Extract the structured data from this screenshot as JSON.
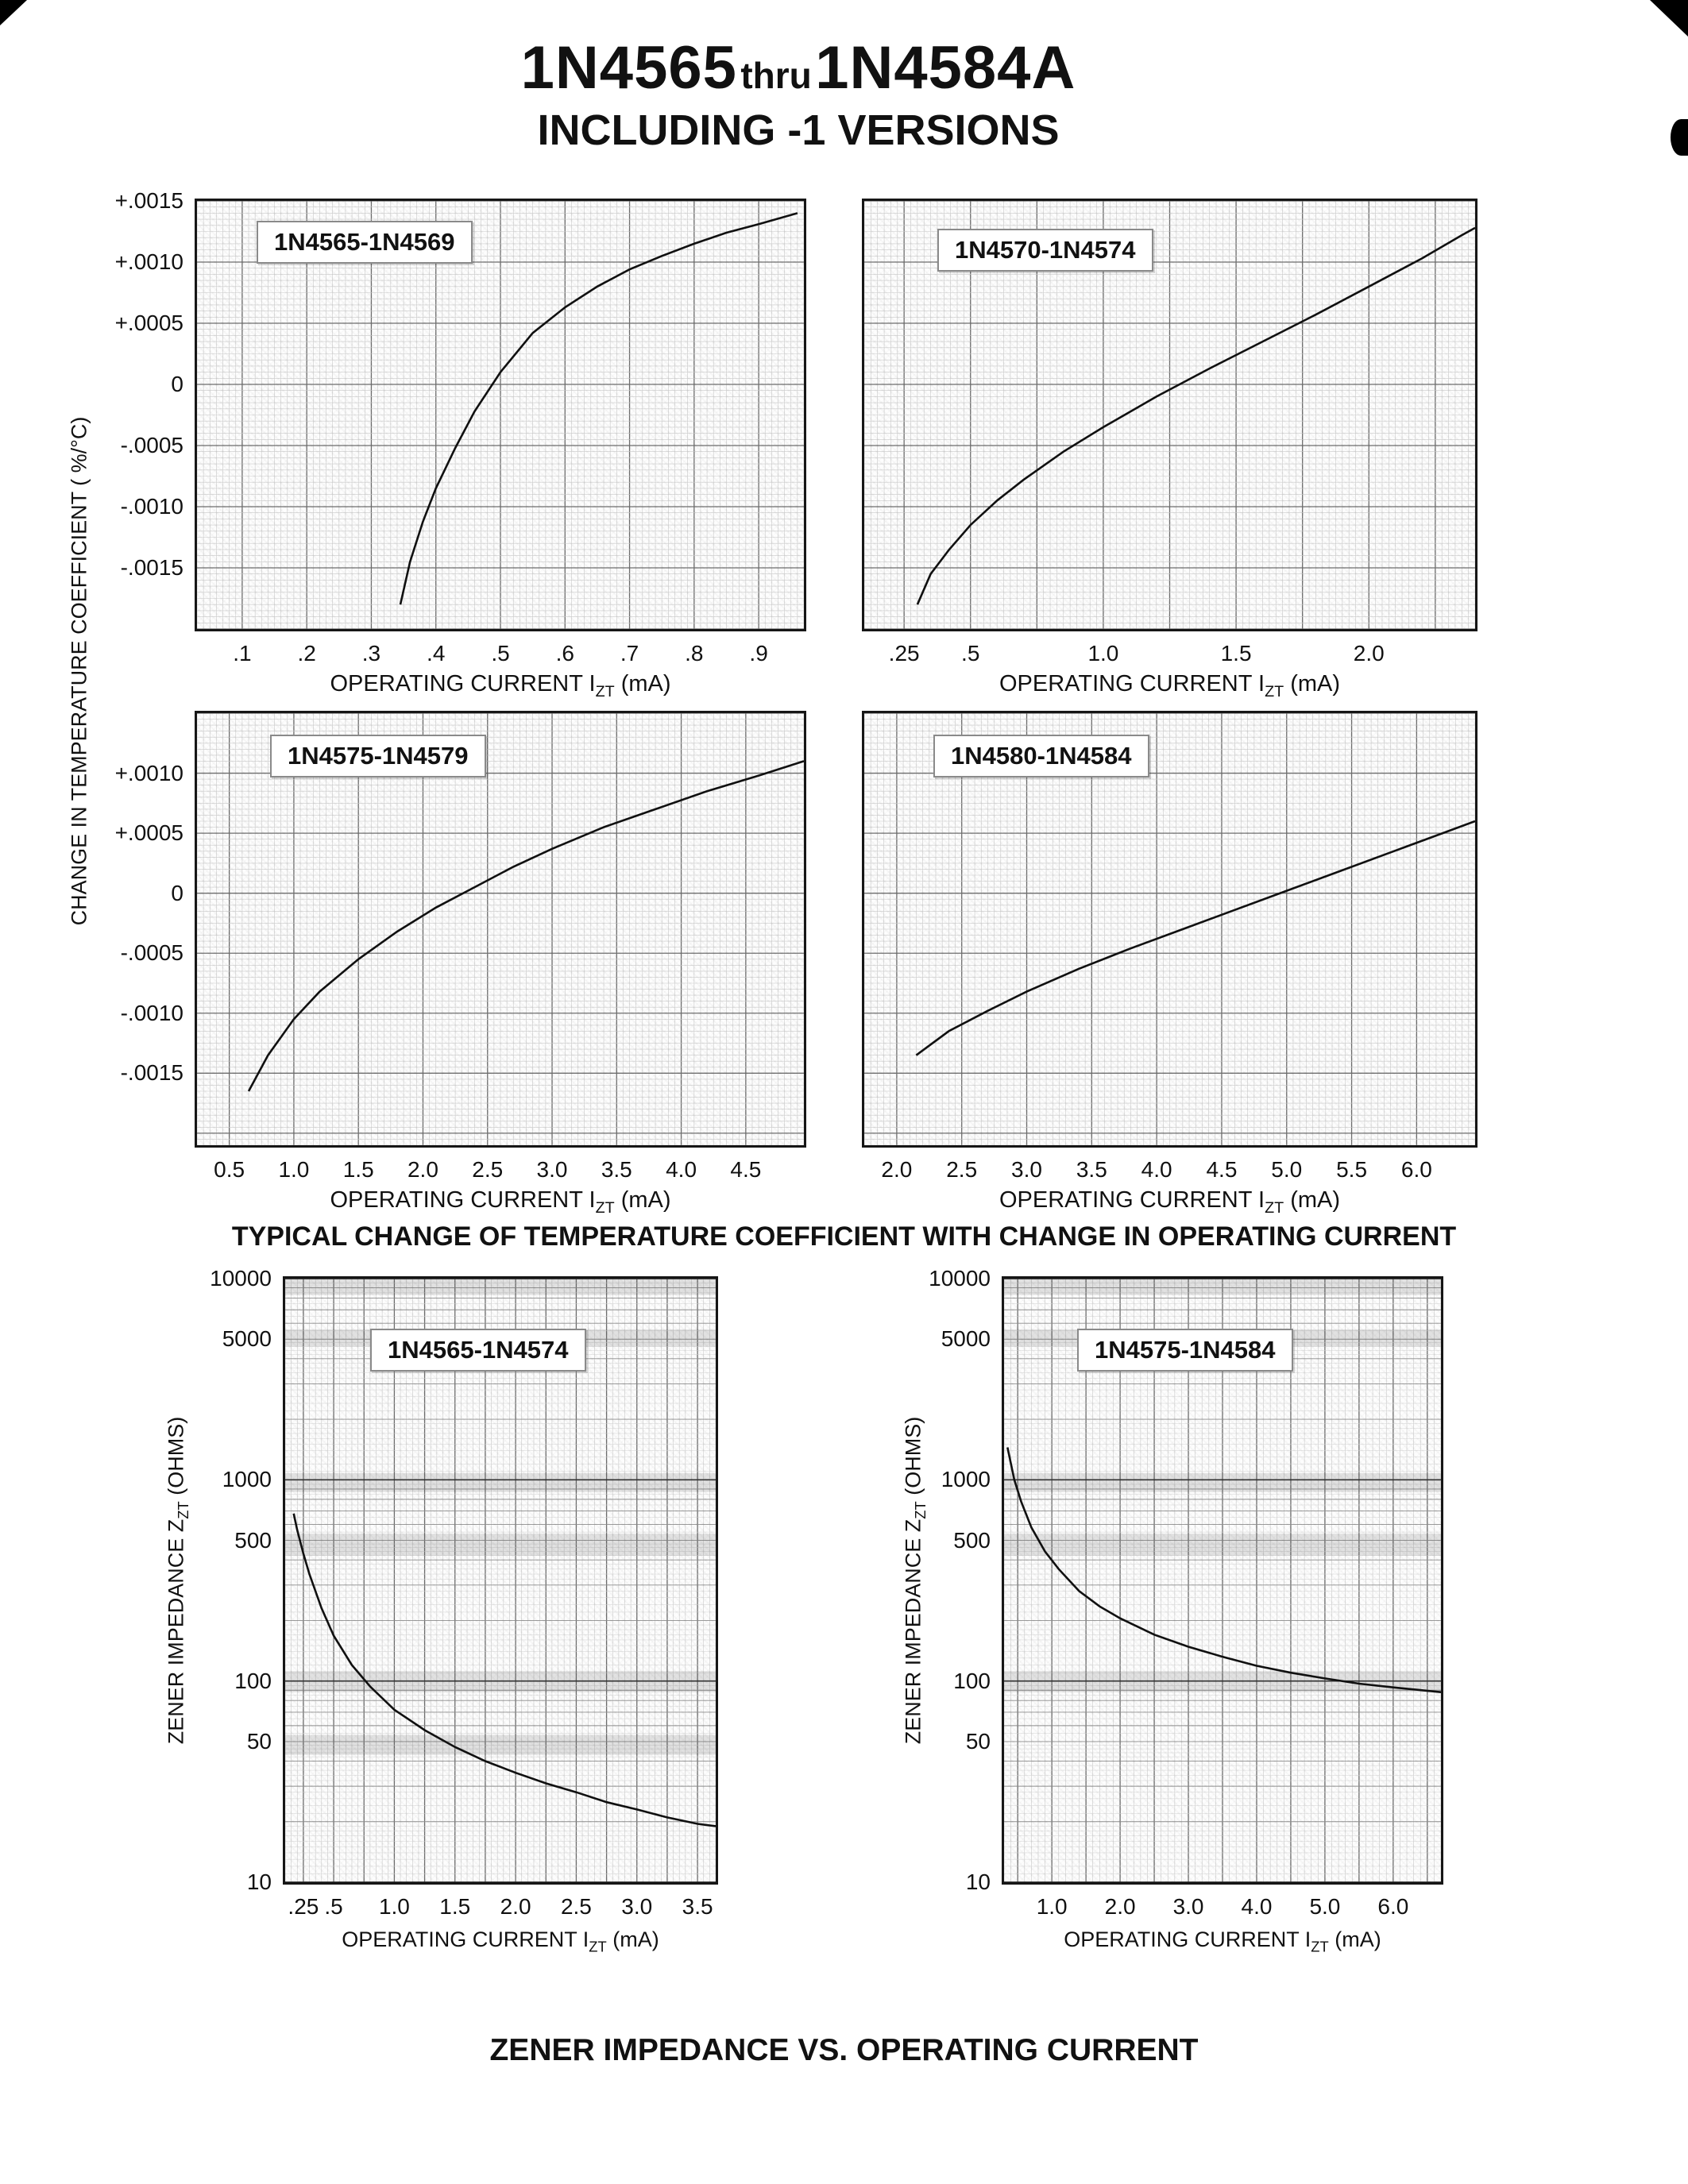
{
  "header": {
    "part1": "1N4565",
    "thru": "thru",
    "part2": "1N4584A",
    "subtitle": "INCLUDING -1 VERSIONS"
  },
  "captions": {
    "temperature": "TYPICAL CHANGE OF TEMPERATURE COEFFICIENT WITH CHANGE IN OPERATING CURRENT",
    "impedance": "ZENER IMPEDANCE VS. OPERATING CURRENT"
  },
  "axis_labels": {
    "x_prefix": "OPERATING CURRENT I",
    "x_sub": "ZT",
    "x_suffix": " (mA)",
    "y_temp_coeff": "CHANGE IN TEMPERATURE COEFFICIENT ( %/°C)",
    "y_impedance_prefix": "ZENER IMPEDANCE Z",
    "y_impedance_sub": "ZT",
    "y_impedance_suffix": " (OHMS)"
  },
  "chart_data": [
    {
      "type": "line",
      "label": "1N4565-1N4569",
      "x_scale": "linear",
      "y_scale": "linear",
      "xlim": [
        0.03,
        0.97
      ],
      "ylim": [
        -0.002,
        0.0015
      ],
      "x_major": 0.1,
      "x_minor": 0.01,
      "y_major": 0.0005,
      "y_minor": 5e-05,
      "xticks": [
        {
          "v": 0.1,
          "t": ".1"
        },
        {
          "v": 0.2,
          "t": ".2"
        },
        {
          "v": 0.3,
          "t": ".3"
        },
        {
          "v": 0.4,
          "t": ".4"
        },
        {
          "v": 0.5,
          "t": ".5"
        },
        {
          "v": 0.6,
          "t": ".6"
        },
        {
          "v": 0.7,
          "t": ".7"
        },
        {
          "v": 0.8,
          "t": ".8"
        },
        {
          "v": 0.9,
          "t": ".9"
        }
      ],
      "yticks": [
        {
          "v": 0.0015,
          "t": "+.0015"
        },
        {
          "v": 0.001,
          "t": "+.0010"
        },
        {
          "v": 0.0005,
          "t": "+.0005"
        },
        {
          "v": 0,
          "t": "0"
        },
        {
          "v": -0.0005,
          "t": "-.0005"
        },
        {
          "v": -0.001,
          "t": "-.0010"
        },
        {
          "v": -0.0015,
          "t": "-.0015"
        }
      ],
      "curve": [
        [
          0.345,
          -0.0018
        ],
        [
          0.36,
          -0.00145
        ],
        [
          0.38,
          -0.00112
        ],
        [
          0.4,
          -0.00085
        ],
        [
          0.43,
          -0.00052
        ],
        [
          0.46,
          -0.00022
        ],
        [
          0.5,
          0.0001
        ],
        [
          0.55,
          0.00042
        ],
        [
          0.6,
          0.00063
        ],
        [
          0.65,
          0.0008
        ],
        [
          0.7,
          0.00094
        ],
        [
          0.75,
          0.00105
        ],
        [
          0.8,
          0.00115
        ],
        [
          0.85,
          0.00124
        ],
        [
          0.9,
          0.00131
        ],
        [
          0.96,
          0.0014
        ]
      ]
    },
    {
      "type": "line",
      "label": "1N4570-1N4574",
      "x_scale": "linear",
      "y_scale": "linear",
      "xlim": [
        0.1,
        2.4
      ],
      "ylim": [
        -0.002,
        0.0015
      ],
      "x_major": 0.25,
      "x_minor": 0.025,
      "y_major": 0.0005,
      "y_minor": 5e-05,
      "xticks": [
        {
          "v": 0.25,
          "t": ".25"
        },
        {
          "v": 0.5,
          "t": ".5"
        },
        {
          "v": 1.0,
          "t": "1.0"
        },
        {
          "v": 1.5,
          "t": "1.5"
        },
        {
          "v": 2.0,
          "t": "2.0"
        }
      ],
      "yticks": [],
      "curve": [
        [
          0.3,
          -0.0018
        ],
        [
          0.35,
          -0.00155
        ],
        [
          0.42,
          -0.00135
        ],
        [
          0.5,
          -0.00115
        ],
        [
          0.6,
          -0.00095
        ],
        [
          0.7,
          -0.00078
        ],
        [
          0.85,
          -0.00055
        ],
        [
          1.0,
          -0.00035
        ],
        [
          1.2,
          -0.0001
        ],
        [
          1.4,
          0.00013
        ],
        [
          1.6,
          0.00035
        ],
        [
          1.8,
          0.00057
        ],
        [
          2.0,
          0.0008
        ],
        [
          2.2,
          0.00103
        ],
        [
          2.35,
          0.00122
        ],
        [
          2.4,
          0.00128
        ]
      ]
    },
    {
      "type": "line",
      "label": "1N4575-1N4579",
      "x_scale": "linear",
      "y_scale": "linear",
      "xlim": [
        0.25,
        4.95
      ],
      "ylim": [
        -0.0021,
        0.0015
      ],
      "x_major": 0.5,
      "x_minor": 0.05,
      "y_major": 0.0005,
      "y_minor": 5e-05,
      "xticks": [
        {
          "v": 0.5,
          "t": "0.5"
        },
        {
          "v": 1.0,
          "t": "1.0"
        },
        {
          "v": 1.5,
          "t": "1.5"
        },
        {
          "v": 2.0,
          "t": "2.0"
        },
        {
          "v": 2.5,
          "t": "2.5"
        },
        {
          "v": 3.0,
          "t": "3.0"
        },
        {
          "v": 3.5,
          "t": "3.5"
        },
        {
          "v": 4.0,
          "t": "4.0"
        },
        {
          "v": 4.5,
          "t": "4.5"
        }
      ],
      "yticks": [
        {
          "v": 0.001,
          "t": "+.0010"
        },
        {
          "v": 0.0005,
          "t": "+.0005"
        },
        {
          "v": 0,
          "t": "0"
        },
        {
          "v": -0.0005,
          "t": "-.0005"
        },
        {
          "v": -0.001,
          "t": "-.0010"
        },
        {
          "v": -0.0015,
          "t": "-.0015"
        }
      ],
      "curve": [
        [
          0.65,
          -0.00165
        ],
        [
          0.8,
          -0.00135
        ],
        [
          1.0,
          -0.00105
        ],
        [
          1.2,
          -0.00082
        ],
        [
          1.5,
          -0.00055
        ],
        [
          1.8,
          -0.00032
        ],
        [
          2.1,
          -0.00012
        ],
        [
          2.4,
          5e-05
        ],
        [
          2.7,
          0.00022
        ],
        [
          3.0,
          0.00037
        ],
        [
          3.4,
          0.00055
        ],
        [
          3.8,
          0.0007
        ],
        [
          4.2,
          0.00085
        ],
        [
          4.6,
          0.00098
        ],
        [
          4.95,
          0.0011
        ]
      ]
    },
    {
      "type": "line",
      "label": "1N4580-1N4584",
      "x_scale": "linear",
      "y_scale": "linear",
      "xlim": [
        1.75,
        6.45
      ],
      "ylim": [
        -0.0021,
        0.0015
      ],
      "x_major": 0.5,
      "x_minor": 0.05,
      "y_major": 0.0005,
      "y_minor": 5e-05,
      "xticks": [
        {
          "v": 2.0,
          "t": "2.0"
        },
        {
          "v": 2.5,
          "t": "2.5"
        },
        {
          "v": 3.0,
          "t": "3.0"
        },
        {
          "v": 3.5,
          "t": "3.5"
        },
        {
          "v": 4.0,
          "t": "4.0"
        },
        {
          "v": 4.5,
          "t": "4.5"
        },
        {
          "v": 5.0,
          "t": "5.0"
        },
        {
          "v": 5.5,
          "t": "5.5"
        },
        {
          "v": 6.0,
          "t": "6.0"
        }
      ],
      "yticks": [],
      "curve": [
        [
          2.15,
          -0.00135
        ],
        [
          2.4,
          -0.00115
        ],
        [
          2.7,
          -0.00098
        ],
        [
          3.0,
          -0.00082
        ],
        [
          3.4,
          -0.00063
        ],
        [
          3.8,
          -0.00046
        ],
        [
          4.2,
          -0.0003
        ],
        [
          4.6,
          -0.00014
        ],
        [
          5.0,
          2e-05
        ],
        [
          5.4,
          0.00018
        ],
        [
          5.8,
          0.00034
        ],
        [
          6.2,
          0.0005
        ],
        [
          6.45,
          0.0006
        ]
      ]
    },
    {
      "type": "line",
      "label": "1N4565-1N4574",
      "x_scale": "linear",
      "y_scale": "log",
      "xlim": [
        0.1,
        3.65
      ],
      "ylim": [
        10,
        10000
      ],
      "x_major": 0.25,
      "x_minor": 0.05,
      "xticks": [
        {
          "v": 0.25,
          "t": ".25"
        },
        {
          "v": 0.5,
          "t": ".5"
        },
        {
          "v": 1.0,
          "t": "1.0"
        },
        {
          "v": 1.5,
          "t": "1.5"
        },
        {
          "v": 2.0,
          "t": "2.0"
        },
        {
          "v": 2.5,
          "t": "2.5"
        },
        {
          "v": 3.0,
          "t": "3.0"
        },
        {
          "v": 3.5,
          "t": "3.5"
        }
      ],
      "yticks": [
        {
          "v": 10000,
          "t": "10000"
        },
        {
          "v": 5000,
          "t": "5000"
        },
        {
          "v": 1000,
          "t": "1000"
        },
        {
          "v": 500,
          "t": "500"
        },
        {
          "v": 100,
          "t": "100"
        },
        {
          "v": 50,
          "t": "50"
        },
        {
          "v": 10,
          "t": "10"
        }
      ],
      "scan_bands": [
        [
          8300,
          10000
        ],
        [
          4600,
          5600
        ],
        [
          870,
          1080
        ],
        [
          420,
          540
        ],
        [
          88,
          112
        ],
        [
          43,
          54
        ]
      ],
      "curve": [
        [
          0.17,
          680
        ],
        [
          0.2,
          560
        ],
        [
          0.25,
          430
        ],
        [
          0.3,
          340
        ],
        [
          0.4,
          230
        ],
        [
          0.5,
          168
        ],
        [
          0.65,
          120
        ],
        [
          0.8,
          94
        ],
        [
          1.0,
          72
        ],
        [
          1.25,
          57
        ],
        [
          1.5,
          47
        ],
        [
          1.75,
          40
        ],
        [
          2.0,
          35
        ],
        [
          2.25,
          31
        ],
        [
          2.5,
          28
        ],
        [
          2.75,
          25
        ],
        [
          3.0,
          23
        ],
        [
          3.25,
          21
        ],
        [
          3.5,
          19.5
        ],
        [
          3.65,
          19
        ]
      ]
    },
    {
      "type": "line",
      "label": "1N4575-1N4584",
      "x_scale": "linear",
      "y_scale": "log",
      "xlim": [
        0.3,
        6.7
      ],
      "ylim": [
        10,
        10000
      ],
      "x_major": 0.5,
      "x_minor": 0.1,
      "xticks": [
        {
          "v": 1.0,
          "t": "1.0"
        },
        {
          "v": 2.0,
          "t": "2.0"
        },
        {
          "v": 3.0,
          "t": "3.0"
        },
        {
          "v": 4.0,
          "t": "4.0"
        },
        {
          "v": 5.0,
          "t": "5.0"
        },
        {
          "v": 6.0,
          "t": "6.0"
        }
      ],
      "yticks": [
        {
          "v": 10000,
          "t": "10000"
        },
        {
          "v": 5000,
          "t": "5000"
        },
        {
          "v": 1000,
          "t": "1000"
        },
        {
          "v": 500,
          "t": "500"
        },
        {
          "v": 100,
          "t": "100"
        },
        {
          "v": 50,
          "t": "50"
        },
        {
          "v": 10,
          "t": "10"
        }
      ],
      "scan_bands": [
        [
          8300,
          10000
        ],
        [
          4600,
          5600
        ],
        [
          870,
          1080
        ],
        [
          420,
          540
        ],
        [
          88,
          112
        ]
      ],
      "curve": [
        [
          0.35,
          1450
        ],
        [
          0.45,
          1000
        ],
        [
          0.55,
          780
        ],
        [
          0.7,
          580
        ],
        [
          0.9,
          440
        ],
        [
          1.1,
          360
        ],
        [
          1.4,
          280
        ],
        [
          1.7,
          235
        ],
        [
          2.0,
          205
        ],
        [
          2.5,
          170
        ],
        [
          3.0,
          148
        ],
        [
          3.5,
          132
        ],
        [
          4.0,
          119
        ],
        [
          4.5,
          110
        ],
        [
          5.0,
          103
        ],
        [
          5.5,
          97
        ],
        [
          6.0,
          93
        ],
        [
          6.7,
          88
        ]
      ]
    }
  ]
}
